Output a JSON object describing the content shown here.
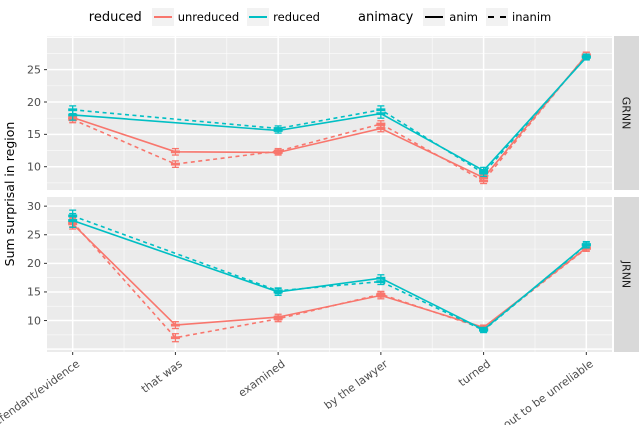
{
  "legend": {
    "groups": [
      {
        "title": "reduced",
        "items": [
          {
            "label": "unreduced",
            "color": "#F8766D",
            "dash": "solid"
          },
          {
            "label": "reduced",
            "color": "#00BFC4",
            "dash": "solid"
          }
        ]
      },
      {
        "title": "animacy",
        "items": [
          {
            "label": "anim",
            "color": "#000000",
            "dash": "solid"
          },
          {
            "label": "inanim",
            "color": "#000000",
            "dash": "dashed"
          }
        ]
      }
    ]
  },
  "axis": {
    "y_title": "Sum surprisal in region"
  },
  "theme": {
    "panel_bg": "#EBEBEB",
    "strip_bg": "#D9D9D9",
    "grid_color": "#FFFFFF",
    "tick_label_color": "#4D4D4D",
    "strip_text_color": "#1A1A1A"
  },
  "chart_data": {
    "type": "line",
    "title": "",
    "xlabel": "",
    "ylabel": "Sum surprisal in region",
    "grid": true,
    "legend_position": "top",
    "categories": [
      "defendant/evidence",
      "that was",
      "examined",
      "by the lawyer",
      "turned",
      "out to be unreliable"
    ],
    "facets": [
      {
        "label": "GRNN",
        "ylim": [
          6.4,
          30.2
        ],
        "yticks": [
          10,
          15,
          20,
          25
        ],
        "series": [
          {
            "name": "unreduced-anim",
            "legend": "unreduced / anim",
            "color": "#F8766D",
            "dash": "solid",
            "values": [
              17.6,
              12.3,
              12.2,
              15.9,
              8.3,
              27.2
            ],
            "se": [
              0.5,
              0.5,
              0.4,
              0.5,
              0.4,
              0.5
            ]
          },
          {
            "name": "unreduced-inanim",
            "legend": "unreduced / inanim",
            "color": "#F8766D",
            "dash": "dashed",
            "values": [
              17.3,
              10.4,
              12.4,
              16.6,
              7.8,
              27.3
            ],
            "se": [
              0.5,
              0.5,
              0.4,
              0.5,
              0.4,
              0.4
            ]
          },
          {
            "name": "reduced-anim",
            "legend": "reduced / anim",
            "color": "#00BFC4",
            "dash": "solid",
            "values": [
              18.0,
              null,
              15.6,
              18.2,
              9.4,
              26.9
            ],
            "se": [
              0.8,
              null,
              0.4,
              0.7,
              0.5,
              0.4
            ]
          },
          {
            "name": "reduced-inanim",
            "legend": "reduced / inanim",
            "color": "#00BFC4",
            "dash": "dashed",
            "values": [
              18.8,
              null,
              15.9,
              18.8,
              9.0,
              27.0
            ],
            "se": [
              0.6,
              null,
              0.4,
              0.6,
              0.5,
              0.4
            ]
          }
        ]
      },
      {
        "label": "JRNN",
        "ylim": [
          4.5,
          31.6
        ],
        "yticks": [
          10,
          15,
          20,
          25,
          30
        ],
        "series": [
          {
            "name": "unreduced-anim",
            "legend": "unreduced / anim",
            "color": "#F8766D",
            "dash": "solid",
            "values": [
              26.9,
              9.2,
              10.6,
              14.4,
              8.8,
              22.7
            ],
            "se": [
              0.9,
              0.6,
              0.5,
              0.6,
              0.4,
              0.5
            ]
          },
          {
            "name": "unreduced-inanim",
            "legend": "unreduced / inanim",
            "color": "#F8766D",
            "dash": "dashed",
            "values": [
              27.2,
              7.0,
              10.3,
              14.6,
              8.6,
              22.6
            ],
            "se": [
              0.8,
              0.7,
              0.5,
              0.5,
              0.4,
              0.5
            ]
          },
          {
            "name": "reduced-anim",
            "legend": "reduced / anim",
            "color": "#00BFC4",
            "dash": "solid",
            "values": [
              27.5,
              null,
              15.0,
              17.4,
              8.4,
              23.3
            ],
            "se": [
              1.2,
              null,
              0.6,
              0.6,
              0.4,
              0.5
            ]
          },
          {
            "name": "reduced-inanim",
            "legend": "reduced / inanim",
            "color": "#00BFC4",
            "dash": "dashed",
            "values": [
              28.3,
              null,
              15.2,
              16.8,
              8.3,
              23.2
            ],
            "se": [
              1.0,
              null,
              0.5,
              0.5,
              0.4,
              0.5
            ]
          }
        ]
      }
    ]
  }
}
